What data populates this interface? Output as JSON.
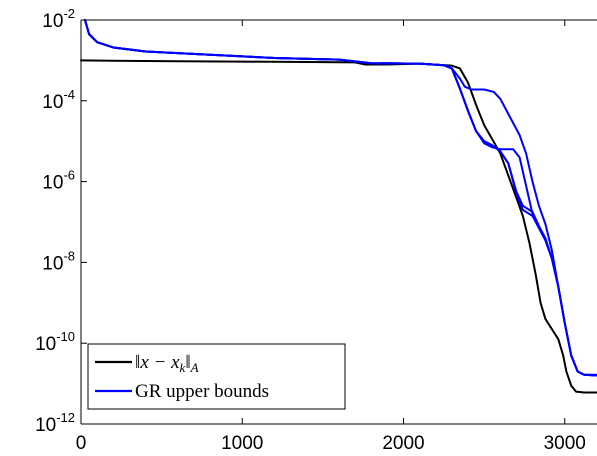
{
  "chart_data": {
    "type": "line",
    "title": "",
    "xlabel": "",
    "ylabel": "",
    "xlim": [
      0,
      3200
    ],
    "ylim_log10": [
      -12,
      -2
    ],
    "y_scale": "log",
    "grid": false,
    "x_ticks": [
      {
        "value": 0,
        "label": "0"
      },
      {
        "value": 1000,
        "label": "1000"
      },
      {
        "value": 2000,
        "label": "2000"
      },
      {
        "value": 3000,
        "label": "3000"
      }
    ],
    "y_ticks": [
      {
        "exp": -2,
        "base": "10",
        "sup": "-2"
      },
      {
        "exp": -4,
        "base": "10",
        "sup": "-4"
      },
      {
        "exp": -6,
        "base": "10",
        "sup": "-6"
      },
      {
        "exp": -8,
        "base": "10",
        "sup": "-8"
      },
      {
        "exp": -10,
        "base": "10",
        "sup": "-10"
      },
      {
        "exp": -12,
        "base": "10",
        "sup": "-12"
      }
    ],
    "legend": {
      "placement": "bottom-left",
      "entries": [
        {
          "label_prefix": "‖",
          "label_var": "x − x",
          "label_sub": "k",
          "label_suffix": "‖",
          "label_norm": "A",
          "color": "#000000"
        },
        {
          "label": "GR upper bounds",
          "color": "#0000ff"
        }
      ]
    },
    "series": [
      {
        "color": "#000000",
        "points": [
          [
            0,
            -3.0
          ],
          [
            200,
            -3.01
          ],
          [
            600,
            -3.02
          ],
          [
            1000,
            -3.03
          ],
          [
            1400,
            -3.04
          ],
          [
            1700,
            -3.05
          ],
          [
            1760,
            -3.1
          ],
          [
            1900,
            -3.1
          ],
          [
            2100,
            -3.08
          ],
          [
            2300,
            -3.13
          ],
          [
            2350,
            -3.2
          ],
          [
            2400,
            -3.55
          ],
          [
            2450,
            -4.1
          ],
          [
            2500,
            -4.6
          ],
          [
            2550,
            -4.95
          ],
          [
            2600,
            -5.3
          ],
          [
            2650,
            -5.85
          ],
          [
            2700,
            -6.4
          ],
          [
            2740,
            -6.85
          ],
          [
            2780,
            -7.5
          ],
          [
            2820,
            -8.3
          ],
          [
            2850,
            -9.0
          ],
          [
            2880,
            -9.4
          ],
          [
            2920,
            -9.65
          ],
          [
            2960,
            -9.9
          ],
          [
            2990,
            -10.3
          ],
          [
            3010,
            -10.7
          ],
          [
            3040,
            -11.05
          ],
          [
            3070,
            -11.2
          ],
          [
            3120,
            -11.22
          ],
          [
            3200,
            -11.22
          ]
        ]
      },
      {
        "color": "#0000ff",
        "points": [
          [
            25,
            -2.0
          ],
          [
            50,
            -2.35
          ],
          [
            100,
            -2.55
          ],
          [
            200,
            -2.68
          ],
          [
            400,
            -2.78
          ],
          [
            800,
            -2.86
          ],
          [
            1200,
            -2.94
          ],
          [
            1600,
            -2.98
          ],
          [
            1800,
            -3.07
          ],
          [
            2100,
            -3.08
          ],
          [
            2250,
            -3.12
          ],
          [
            2300,
            -3.2
          ],
          [
            2350,
            -3.45
          ],
          [
            2380,
            -3.65
          ],
          [
            2420,
            -3.72
          ],
          [
            2500,
            -3.72
          ],
          [
            2560,
            -3.78
          ],
          [
            2600,
            -3.95
          ],
          [
            2640,
            -4.25
          ],
          [
            2680,
            -4.55
          ],
          [
            2720,
            -4.85
          ],
          [
            2760,
            -5.3
          ],
          [
            2800,
            -6.0
          ],
          [
            2840,
            -6.6
          ],
          [
            2880,
            -7.05
          ],
          [
            2920,
            -7.7
          ],
          [
            2960,
            -8.6
          ],
          [
            3000,
            -9.5
          ],
          [
            3040,
            -10.3
          ],
          [
            3080,
            -10.7
          ],
          [
            3120,
            -10.78
          ],
          [
            3200,
            -10.78
          ]
        ]
      },
      {
        "color": "#0000ff",
        "points": [
          [
            25,
            -2.0
          ],
          [
            50,
            -2.35
          ],
          [
            100,
            -2.55
          ],
          [
            200,
            -2.68
          ],
          [
            400,
            -2.78
          ],
          [
            800,
            -2.86
          ],
          [
            1200,
            -2.94
          ],
          [
            1600,
            -2.98
          ],
          [
            1800,
            -3.07
          ],
          [
            2100,
            -3.08
          ],
          [
            2250,
            -3.12
          ],
          [
            2300,
            -3.2
          ],
          [
            2350,
            -3.7
          ],
          [
            2400,
            -4.25
          ],
          [
            2450,
            -4.75
          ],
          [
            2500,
            -5.05
          ],
          [
            2550,
            -5.15
          ],
          [
            2600,
            -5.2
          ],
          [
            2680,
            -5.2
          ],
          [
            2720,
            -5.4
          ],
          [
            2760,
            -6.1
          ],
          [
            2800,
            -6.8
          ],
          [
            2840,
            -7.15
          ],
          [
            2880,
            -7.45
          ],
          [
            2920,
            -7.9
          ],
          [
            2960,
            -8.6
          ],
          [
            3000,
            -9.5
          ],
          [
            3040,
            -10.3
          ],
          [
            3080,
            -10.7
          ],
          [
            3120,
            -10.78
          ],
          [
            3200,
            -10.8
          ]
        ]
      },
      {
        "color": "#0000ff",
        "points": [
          [
            25,
            -2.0
          ],
          [
            50,
            -2.35
          ],
          [
            100,
            -2.55
          ],
          [
            200,
            -2.68
          ],
          [
            400,
            -2.78
          ],
          [
            800,
            -2.86
          ],
          [
            1200,
            -2.94
          ],
          [
            1600,
            -2.98
          ],
          [
            1800,
            -3.07
          ],
          [
            2100,
            -3.08
          ],
          [
            2250,
            -3.12
          ],
          [
            2300,
            -3.2
          ],
          [
            2350,
            -3.7
          ],
          [
            2400,
            -4.25
          ],
          [
            2450,
            -4.75
          ],
          [
            2500,
            -5.0
          ],
          [
            2550,
            -5.1
          ],
          [
            2600,
            -5.25
          ],
          [
            2650,
            -5.55
          ],
          [
            2700,
            -6.25
          ],
          [
            2740,
            -6.6
          ],
          [
            2800,
            -6.75
          ],
          [
            2840,
            -7.1
          ],
          [
            2880,
            -7.4
          ],
          [
            2920,
            -7.9
          ],
          [
            2960,
            -8.6
          ],
          [
            3000,
            -9.5
          ],
          [
            3040,
            -10.3
          ],
          [
            3080,
            -10.7
          ],
          [
            3120,
            -10.78
          ],
          [
            3200,
            -10.8
          ]
        ]
      },
      {
        "color": "#0000ff",
        "points": [
          [
            25,
            -2.0
          ],
          [
            50,
            -2.35
          ],
          [
            100,
            -2.55
          ],
          [
            200,
            -2.68
          ],
          [
            400,
            -2.78
          ],
          [
            800,
            -2.86
          ],
          [
            1200,
            -2.94
          ],
          [
            1600,
            -2.98
          ],
          [
            1800,
            -3.07
          ],
          [
            2100,
            -3.08
          ],
          [
            2250,
            -3.12
          ],
          [
            2300,
            -3.2
          ],
          [
            2350,
            -3.7
          ],
          [
            2400,
            -4.25
          ],
          [
            2450,
            -4.75
          ],
          [
            2500,
            -5.0
          ],
          [
            2550,
            -5.1
          ],
          [
            2600,
            -5.25
          ],
          [
            2650,
            -5.55
          ],
          [
            2700,
            -6.3
          ],
          [
            2740,
            -6.7
          ],
          [
            2800,
            -6.85
          ],
          [
            2840,
            -7.15
          ],
          [
            2880,
            -7.45
          ],
          [
            2920,
            -7.9
          ],
          [
            2960,
            -8.6
          ],
          [
            3000,
            -9.5
          ],
          [
            3040,
            -10.3
          ],
          [
            3080,
            -10.7
          ],
          [
            3120,
            -10.78
          ],
          [
            3200,
            -10.8
          ]
        ]
      }
    ]
  }
}
